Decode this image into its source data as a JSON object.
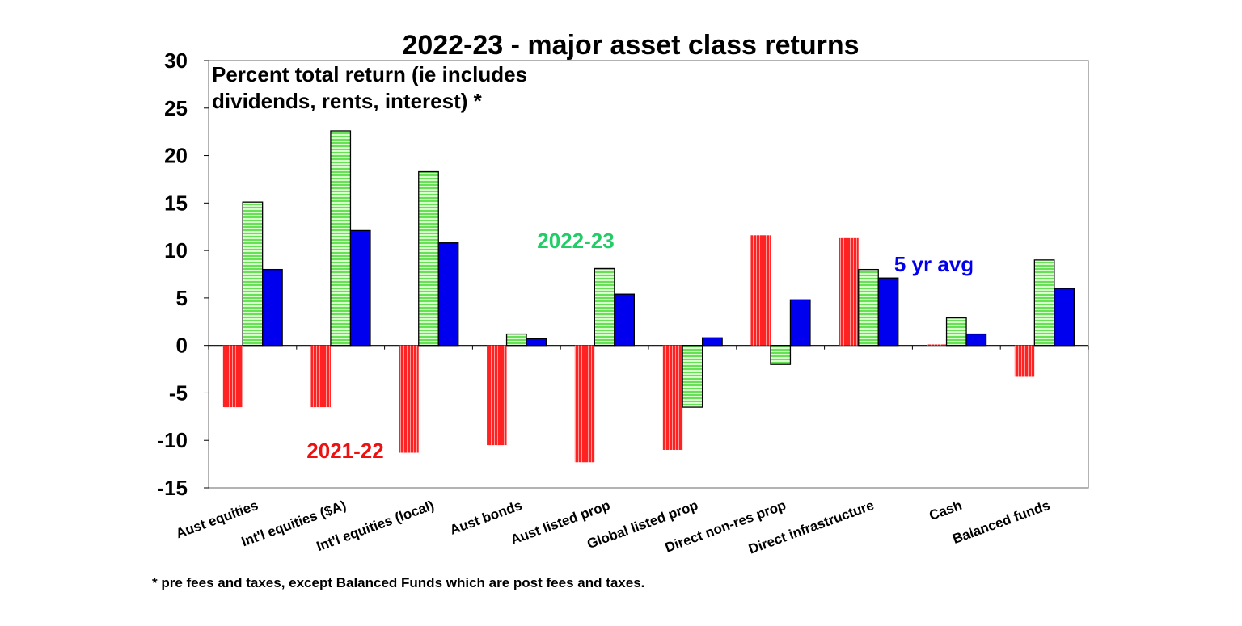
{
  "chart_data": {
    "type": "bar",
    "title": "2022-23 - major asset class returns",
    "subtitle_lines": [
      "Percent total return (ie includes",
      "dividends, rents, interest) *"
    ],
    "xlabel": "",
    "ylabel": "",
    "ylim": [
      -15,
      30
    ],
    "yticks": [
      30,
      25,
      20,
      15,
      10,
      5,
      0,
      -5,
      -10,
      -15
    ],
    "grid": false,
    "categories": [
      "Aust equities",
      "Int'l equities ($A)",
      "Int'l equities (local)",
      "Aust bonds",
      "Aust listed prop",
      "Global listed prop",
      "Direct non-res prop",
      "Direct infrastructure",
      "Cash",
      "Balanced funds"
    ],
    "series": [
      {
        "name": "2021-22",
        "color": "#ff2020",
        "pattern": "vertical-hatch",
        "values": [
          -6.5,
          -6.5,
          -11.3,
          -10.5,
          -12.3,
          -11.0,
          11.6,
          11.3,
          0.1,
          -3.3
        ]
      },
      {
        "name": "2022-23",
        "color": "#88ee66",
        "pattern": "horizontal-hatch",
        "values": [
          15.1,
          22.6,
          18.3,
          1.2,
          8.1,
          -6.5,
          -2.0,
          8.0,
          2.9,
          9.0
        ]
      },
      {
        "name": "5 yr avg",
        "color": "#0000ee",
        "pattern": "solid",
        "values": [
          8.0,
          12.1,
          10.8,
          0.7,
          5.4,
          0.8,
          4.8,
          7.1,
          1.2,
          6.0
        ]
      }
    ],
    "annotations": [
      {
        "text": "2022-23",
        "color": "#22cc66",
        "series": "2022-23"
      },
      {
        "text": "5 yr avg",
        "color": "#0000ee",
        "series": "5 yr avg"
      },
      {
        "text": "2021-22",
        "color": "#ee1111",
        "series": "2021-22"
      }
    ],
    "footnote": "* pre fees and taxes, except Balanced Funds which are post fees and taxes."
  }
}
